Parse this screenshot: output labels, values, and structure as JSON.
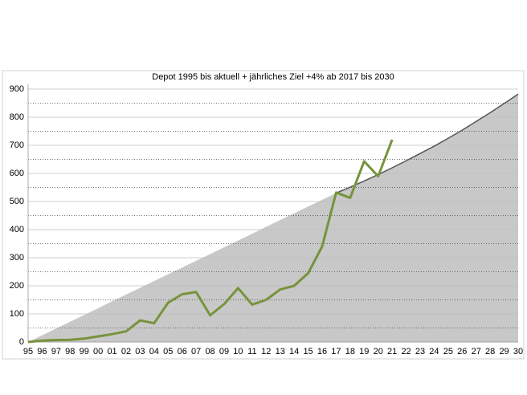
{
  "chart_data": {
    "type": "line",
    "title": "Depot 1995 bis aktuell + jährliches Ziel +4% ab 2017 bis 2030",
    "categories": [
      "95",
      "96",
      "97",
      "98",
      "99",
      "00",
      "01",
      "02",
      "03",
      "04",
      "05",
      "06",
      "07",
      "08",
      "09",
      "10",
      "11",
      "12",
      "13",
      "14",
      "15",
      "16",
      "17",
      "18",
      "19",
      "20",
      "21",
      "22",
      "23",
      "24",
      "25",
      "26",
      "27",
      "28",
      "29",
      "30"
    ],
    "series": [
      {
        "color": "#c8c8c8",
        "kind": "area",
        "values": [
          0,
          24,
          48,
          72,
          96,
          120,
          145,
          169,
          193,
          217,
          241,
          265,
          289,
          313,
          337,
          361,
          385,
          410,
          434,
          458,
          482,
          506,
          530,
          551,
          573,
          596,
          620,
          645,
          671,
          697,
          725,
          754,
          785,
          816,
          849,
          882
        ]
      },
      {
        "color": "#555555",
        "kind": "line",
        "values": [
          null,
          null,
          null,
          null,
          null,
          null,
          null,
          null,
          null,
          null,
          null,
          null,
          null,
          null,
          null,
          null,
          null,
          null,
          null,
          null,
          null,
          null,
          530,
          551,
          573,
          596,
          620,
          645,
          671,
          697,
          725,
          754,
          785,
          816,
          849,
          882
        ]
      },
      {
        "color": "#77933c",
        "kind": "line",
        "values": [
          0,
          5,
          7,
          8,
          12,
          20,
          28,
          38,
          77,
          67,
          140,
          170,
          178,
          95,
          135,
          192,
          133,
          150,
          187,
          200,
          245,
          340,
          532,
          513,
          643,
          590,
          720,
          null,
          null,
          null,
          null,
          null,
          null,
          null,
          null,
          null
        ]
      }
    ],
    "ylim": [
      0,
      900
    ],
    "yticks": [
      0,
      100,
      200,
      300,
      400,
      500,
      600,
      700,
      800,
      900
    ],
    "grid": true
  }
}
